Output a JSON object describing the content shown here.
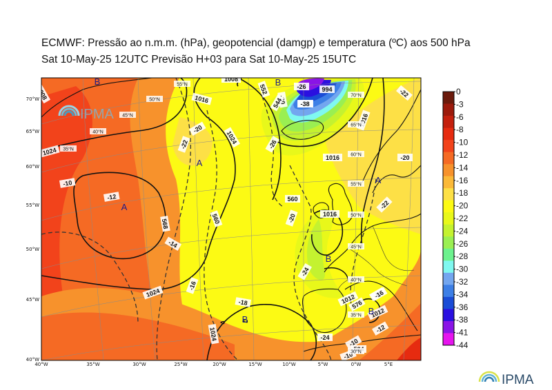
{
  "title_line1": "ECMWF:  Pressão ao n.m.m. (hPa), geopotencial (damgp) e temperatura (ºC) aos 500 hPa",
  "title_line2": "Sat 10-May-25 12UTC Previsão H+03 para Sat 10-May-25 15UTC",
  "logo_text": "IPMA",
  "colorbar": {
    "labels": [
      "0",
      "-3",
      "-6",
      "-8",
      "-10",
      "-12",
      "-14",
      "-16",
      "-18",
      "-20",
      "-22",
      "-24",
      "-26",
      "-28",
      "-30",
      "-32",
      "-34",
      "-36",
      "-38",
      "-41",
      "-44"
    ],
    "colors": [
      "#6b1a0c",
      "#9c1a0c",
      "#c4200e",
      "#e62b10",
      "#f2431b",
      "#f56a24",
      "#f7922c",
      "#fbb938",
      "#fde046",
      "#fcfa14",
      "#e8f81a",
      "#c4f230",
      "#9aef52",
      "#6cf28e",
      "#7ff8f0",
      "#73a6ef",
      "#3d7fe6",
      "#1a4cd6",
      "#2a10e0",
      "#8a14e6",
      "#e614ee"
    ]
  },
  "map": {
    "lon_labels": [
      "40°W",
      "35°W",
      "30°W",
      "25°W",
      "20°W",
      "15°W",
      "10°W",
      "5°W",
      "0°W",
      "5°E"
    ],
    "lat_labels_left": [
      "70°W",
      "65°W",
      "60°W",
      "55°W",
      "50°W",
      "45°W",
      "40°W"
    ],
    "grid_lat_labels": [
      "55°N",
      "50°N",
      "45°N",
      "40°N",
      "35°N",
      "70°N",
      "65°N",
      "60°N",
      "55°N",
      "50°N",
      "45°N",
      "40°N",
      "35°N",
      "30°N"
    ],
    "isobar_labels": [
      "1024",
      "1024",
      "1024",
      "1024",
      "1016",
      "1008",
      "1008",
      "1016",
      "1016",
      "1016",
      "1012",
      "1012"
    ],
    "isotherm_labels": [
      "-10",
      "-12",
      "-14",
      "-16",
      "-16",
      "-18",
      "-20",
      "-22",
      "-20",
      "-22",
      "-24",
      "-24",
      "-16",
      "-12",
      "-10",
      "-10",
      "-26",
      "-30",
      "-38",
      "-26",
      "-22",
      "-20"
    ],
    "geopotential_labels": [
      "568",
      "560",
      "552",
      "544",
      "560",
      "576",
      "584"
    ],
    "centres": [
      {
        "type": "A",
        "lon": -34,
        "lat": 57,
        "value": "-12"
      },
      {
        "type": "A",
        "lon": -25,
        "lat": 65
      },
      {
        "type": "A",
        "lon": 8,
        "lat": 62
      },
      {
        "type": "B",
        "lon": -14,
        "lat": 42
      },
      {
        "type": "B",
        "lon": -5,
        "lat": 51
      },
      {
        "type": "B",
        "lon": 1,
        "lat": 40
      },
      {
        "type": "B",
        "lon": -36,
        "lat": 74
      },
      {
        "type": "B",
        "lon": -17,
        "lat": 73
      }
    ],
    "low_value": "994",
    "cold_core": "-38"
  }
}
